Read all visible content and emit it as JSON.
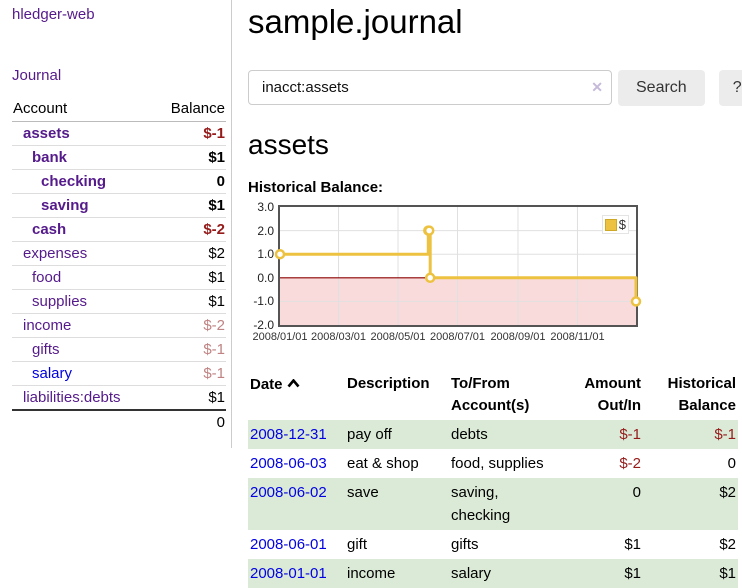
{
  "palette": {
    "purple_link": "#551a8b",
    "blue_link": "#0000e0",
    "negative_strong": "#951b1b",
    "negative_muted": "#c08383",
    "row_green": "#dbead7",
    "series_gold": "#edc240"
  },
  "app": {
    "brand": "hledger-web"
  },
  "sidebar": {
    "journal_link": "Journal",
    "accounts_table": {
      "headers": {
        "account": "Account",
        "balance": "Balance"
      },
      "rows": [
        {
          "name": "assets",
          "balance": "$-1",
          "indent": 1,
          "selected": true,
          "negative": "strong"
        },
        {
          "name": "bank",
          "balance": "$1",
          "indent": 2,
          "selected": true
        },
        {
          "name": "checking",
          "balance": "0",
          "indent": 3,
          "selected": true
        },
        {
          "name": "saving",
          "balance": "$1",
          "indent": 3,
          "selected": true
        },
        {
          "name": "cash",
          "balance": "$-2",
          "indent": 2,
          "selected": true,
          "negative": "strong"
        },
        {
          "name": "expenses",
          "balance": "$2",
          "indent": 1
        },
        {
          "name": "food",
          "balance": "$1",
          "indent": 2
        },
        {
          "name": "supplies",
          "balance": "$1",
          "indent": 2
        },
        {
          "name": "income",
          "balance": "$-2",
          "indent": 1,
          "negative": "muted"
        },
        {
          "name": "gifts",
          "balance": "$-1",
          "indent": 2,
          "negative": "muted"
        },
        {
          "name": "salary",
          "balance": "$-1",
          "indent": 2,
          "negative": "muted",
          "unvisited": true
        },
        {
          "name": "liabilities:debts",
          "balance": "$1",
          "indent": 1
        }
      ],
      "total": "0"
    }
  },
  "main": {
    "title": "sample.journal",
    "search": {
      "value": "inacct:assets",
      "clear_icon": "✕",
      "button": "Search",
      "help_button": "?"
    },
    "account_heading": "assets"
  },
  "chart_data": {
    "type": "line",
    "title": "Historical Balance:",
    "step": true,
    "legend": "$",
    "legend_position": "top-right",
    "grid": true,
    "xlim": [
      "2008-01-01",
      "2008-12-31"
    ],
    "ylim": [
      -2.0,
      3.0
    ],
    "y_ticks": [
      "3.0",
      "2.0",
      "1.0",
      "0.0",
      "-1.0",
      "-2.0"
    ],
    "x_ticks": [
      "2008/01/01",
      "2008/03/01",
      "2008/05/01",
      "2008/07/01",
      "2008/09/01",
      "2008/11/01"
    ],
    "series": [
      {
        "name": "$",
        "color": "#edc240",
        "points": [
          [
            "2008-01-01",
            1
          ],
          [
            "2008-06-01",
            2
          ],
          [
            "2008-06-02",
            2
          ],
          [
            "2008-06-03",
            0
          ],
          [
            "2008-12-31",
            -1
          ]
        ]
      }
    ],
    "zero_line_color": "#8b0000",
    "negative_region_color": "#f9dbdb"
  },
  "register_table": {
    "headers": {
      "date": "Date",
      "description": "Description",
      "accounts": "To/From Account(s)",
      "amount": "Amount Out/In",
      "balance": "Historical Balance"
    },
    "rows": [
      {
        "date": "2008-12-31",
        "description": "pay off",
        "accounts": "debts",
        "amount": "$-1",
        "balance": "$-1",
        "amount_negative": true,
        "balance_negative": true
      },
      {
        "date": "2008-06-03",
        "description": "eat & shop",
        "accounts": "food, supplies",
        "amount": "$-2",
        "balance": "0",
        "amount_negative": true
      },
      {
        "date": "2008-06-02",
        "description": "save",
        "accounts": "saving, checking",
        "amount": "0",
        "balance": "$2"
      },
      {
        "date": "2008-06-01",
        "description": "gift",
        "accounts": "gifts",
        "amount": "$1",
        "balance": "$2"
      },
      {
        "date": "2008-01-01",
        "description": "income",
        "accounts": "salary",
        "amount": "$1",
        "balance": "$1"
      }
    ]
  }
}
